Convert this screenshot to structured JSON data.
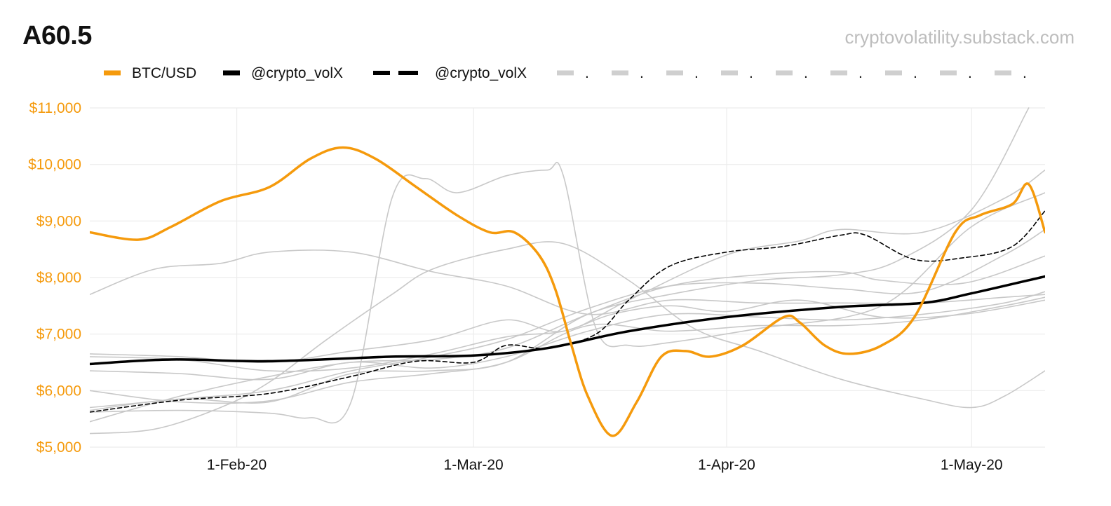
{
  "header": {
    "title": "A60.5",
    "source": "cryptovolatility.substack.com"
  },
  "colors": {
    "btc": "#f59a0c",
    "vol": "#000000",
    "grey": "#c8c8c8",
    "grid": "#ececec"
  },
  "legend": [
    {
      "label": "BTC/USD",
      "style": "btc"
    },
    {
      "label": "@crypto_volX",
      "style": "solid-black"
    },
    {
      "label": "@crypto_volX",
      "style": "dashed-black"
    },
    {
      "label": ".",
      "style": "grey"
    },
    {
      "label": ".",
      "style": "grey"
    },
    {
      "label": ".",
      "style": "grey"
    },
    {
      "label": ".",
      "style": "grey"
    },
    {
      "label": ".",
      "style": "grey"
    },
    {
      "label": ".",
      "style": "grey"
    },
    {
      "label": ".",
      "style": "grey"
    },
    {
      "label": ".",
      "style": "grey"
    },
    {
      "label": ".",
      "style": "grey"
    }
  ],
  "chart_data": {
    "type": "line",
    "title": "A60.5",
    "ylim": [
      5000,
      11000
    ],
    "yticks": [
      5000,
      6000,
      7000,
      8000,
      9000,
      10000,
      11000
    ],
    "ytick_labels": [
      "$5,000",
      "$6,000",
      "$7,000",
      "$8,000",
      "$9,000",
      "$10,000",
      "$11,000"
    ],
    "xlim": [
      "2020-01-14",
      "2020-05-10"
    ],
    "xticks": [
      "2020-02-01",
      "2020-03-01",
      "2020-04-01",
      "2020-05-01"
    ],
    "xtick_labels": [
      "1-Feb-20",
      "1-Mar-20",
      "1-Apr-20",
      "1-May-20"
    ],
    "grid": true,
    "legend_position": "top-left",
    "series": [
      {
        "name": "BTC/USD",
        "style": "btc",
        "points": [
          [
            "2020-01-14",
            8800
          ],
          [
            "2020-01-20",
            8670
          ],
          [
            "2020-01-24",
            8900
          ],
          [
            "2020-01-30",
            9350
          ],
          [
            "2020-02-05",
            9600
          ],
          [
            "2020-02-10",
            10100
          ],
          [
            "2020-02-14",
            10300
          ],
          [
            "2020-02-18",
            10100
          ],
          [
            "2020-02-23",
            9600
          ],
          [
            "2020-02-28",
            9100
          ],
          [
            "2020-03-03",
            8800
          ],
          [
            "2020-03-06",
            8800
          ],
          [
            "2020-03-09",
            8400
          ],
          [
            "2020-03-11",
            7800
          ],
          [
            "2020-03-13",
            6800
          ],
          [
            "2020-03-15",
            5900
          ],
          [
            "2020-03-18",
            5200
          ],
          [
            "2020-03-21",
            5800
          ],
          [
            "2020-03-24",
            6600
          ],
          [
            "2020-03-27",
            6700
          ],
          [
            "2020-03-30",
            6600
          ],
          [
            "2020-04-03",
            6800
          ],
          [
            "2020-04-08",
            7300
          ],
          [
            "2020-04-10",
            7200
          ],
          [
            "2020-04-13",
            6800
          ],
          [
            "2020-04-16",
            6650
          ],
          [
            "2020-04-20",
            6800
          ],
          [
            "2020-04-24",
            7300
          ],
          [
            "2020-04-29",
            8800
          ],
          [
            "2020-05-02",
            9100
          ],
          [
            "2020-05-06",
            9300
          ],
          [
            "2020-05-08",
            9650
          ],
          [
            "2020-05-10",
            8800
          ]
        ]
      },
      {
        "name": "@crypto_volX",
        "style": "solid-black",
        "points": [
          [
            "2020-01-14",
            6470
          ],
          [
            "2020-01-24",
            6550
          ],
          [
            "2020-02-05",
            6520
          ],
          [
            "2020-02-20",
            6600
          ],
          [
            "2020-03-01",
            6620
          ],
          [
            "2020-03-10",
            6750
          ],
          [
            "2020-03-20",
            7050
          ],
          [
            "2020-04-01",
            7300
          ],
          [
            "2020-04-15",
            7480
          ],
          [
            "2020-04-25",
            7550
          ],
          [
            "2020-05-01",
            7720
          ],
          [
            "2020-05-10",
            8020
          ]
        ]
      },
      {
        "name": "@crypto_volX",
        "style": "dashed-black",
        "points": [
          [
            "2020-01-14",
            5620
          ],
          [
            "2020-01-25",
            5830
          ],
          [
            "2020-02-05",
            5950
          ],
          [
            "2020-02-15",
            6250
          ],
          [
            "2020-02-23",
            6520
          ],
          [
            "2020-03-01",
            6500
          ],
          [
            "2020-03-05",
            6800
          ],
          [
            "2020-03-10",
            6750
          ],
          [
            "2020-03-16",
            7000
          ],
          [
            "2020-03-20",
            7600
          ],
          [
            "2020-03-25",
            8200
          ],
          [
            "2020-04-01",
            8450
          ],
          [
            "2020-04-08",
            8550
          ],
          [
            "2020-04-15",
            8750
          ],
          [
            "2020-04-18",
            8750
          ],
          [
            "2020-04-24",
            8320
          ],
          [
            "2020-04-30",
            8350
          ],
          [
            "2020-05-06",
            8550
          ],
          [
            "2020-05-10",
            9180
          ]
        ]
      },
      {
        "name": "",
        "style": "grey",
        "points": [
          [
            "2020-01-14",
            7700
          ],
          [
            "2020-01-22",
            8150
          ],
          [
            "2020-01-30",
            8250
          ],
          [
            "2020-02-05",
            8450
          ],
          [
            "2020-02-15",
            8450
          ],
          [
            "2020-02-25",
            8100
          ],
          [
            "2020-03-05",
            7850
          ],
          [
            "2020-03-15",
            7350
          ],
          [
            "2020-03-25",
            7600
          ],
          [
            "2020-04-05",
            7550
          ],
          [
            "2020-04-15",
            7550
          ],
          [
            "2020-04-25",
            7550
          ],
          [
            "2020-05-05",
            7650
          ],
          [
            "2020-05-10",
            7700
          ]
        ]
      },
      {
        "name": "",
        "style": "grey",
        "points": [
          [
            "2020-01-14",
            5620
          ],
          [
            "2020-01-25",
            5650
          ],
          [
            "2020-02-05",
            5600
          ],
          [
            "2020-02-10",
            5520
          ],
          [
            "2020-02-15",
            5800
          ],
          [
            "2020-02-20",
            9400
          ],
          [
            "2020-02-24",
            9750
          ],
          [
            "2020-02-28",
            9500
          ],
          [
            "2020-03-05",
            9800
          ],
          [
            "2020-03-10",
            9900
          ],
          [
            "2020-03-12",
            9800
          ],
          [
            "2020-03-16",
            7100
          ],
          [
            "2020-03-20",
            6800
          ],
          [
            "2020-03-25",
            6850
          ],
          [
            "2020-04-05",
            7100
          ],
          [
            "2020-04-20",
            7500
          ],
          [
            "2020-05-01",
            8900
          ],
          [
            "2020-05-10",
            9500
          ]
        ]
      },
      {
        "name": "",
        "style": "grey",
        "points": [
          [
            "2020-01-14",
            6600
          ],
          [
            "2020-01-25",
            6550
          ],
          [
            "2020-02-05",
            6350
          ],
          [
            "2020-02-15",
            6400
          ],
          [
            "2020-02-25",
            6650
          ],
          [
            "2020-03-05",
            6950
          ],
          [
            "2020-03-12",
            7050
          ],
          [
            "2020-03-18",
            7350
          ],
          [
            "2020-03-25",
            7500
          ],
          [
            "2020-04-01",
            7400
          ],
          [
            "2020-04-10",
            7600
          ],
          [
            "2020-04-20",
            7300
          ],
          [
            "2020-04-30",
            7350
          ],
          [
            "2020-05-10",
            7600
          ]
        ]
      },
      {
        "name": "",
        "style": "grey",
        "points": [
          [
            "2020-01-14",
            5240
          ],
          [
            "2020-01-22",
            5320
          ],
          [
            "2020-01-30",
            5700
          ],
          [
            "2020-02-05",
            6150
          ],
          [
            "2020-02-12",
            6900
          ],
          [
            "2020-02-20",
            7700
          ],
          [
            "2020-02-25",
            8150
          ],
          [
            "2020-03-05",
            8500
          ],
          [
            "2020-03-12",
            8600
          ],
          [
            "2020-03-20",
            7950
          ],
          [
            "2020-03-28",
            7100
          ],
          [
            "2020-04-05",
            6700
          ],
          [
            "2020-04-15",
            6200
          ],
          [
            "2020-04-25",
            5850
          ],
          [
            "2020-05-01",
            5700
          ],
          [
            "2020-05-05",
            5900
          ],
          [
            "2020-05-10",
            6350
          ]
        ]
      },
      {
        "name": "",
        "style": "grey",
        "points": [
          [
            "2020-01-14",
            5450
          ],
          [
            "2020-01-25",
            5900
          ],
          [
            "2020-02-05",
            6250
          ],
          [
            "2020-02-15",
            6500
          ],
          [
            "2020-02-25",
            6550
          ],
          [
            "2020-03-05",
            6750
          ],
          [
            "2020-03-15",
            7350
          ],
          [
            "2020-03-25",
            7850
          ],
          [
            "2020-04-05",
            8050
          ],
          [
            "2020-04-15",
            8100
          ],
          [
            "2020-04-20",
            7950
          ],
          [
            "2020-04-30",
            7900
          ],
          [
            "2020-05-10",
            8380
          ]
        ]
      },
      {
        "name": "",
        "style": "grey",
        "points": [
          [
            "2020-01-14",
            6350
          ],
          [
            "2020-01-25",
            6300
          ],
          [
            "2020-02-05",
            6200
          ],
          [
            "2020-02-15",
            6500
          ],
          [
            "2020-02-25",
            6400
          ],
          [
            "2020-03-05",
            6600
          ],
          [
            "2020-03-15",
            7050
          ],
          [
            "2020-03-25",
            7350
          ],
          [
            "2020-04-05",
            7300
          ],
          [
            "2020-04-15",
            7250
          ],
          [
            "2020-04-25",
            7350
          ],
          [
            "2020-05-05",
            7550
          ],
          [
            "2020-05-10",
            7750
          ]
        ]
      },
      {
        "name": "",
        "style": "grey",
        "points": [
          [
            "2020-01-14",
            6000
          ],
          [
            "2020-01-25",
            5800
          ],
          [
            "2020-02-05",
            5820
          ],
          [
            "2020-02-15",
            6150
          ],
          [
            "2020-02-25",
            6300
          ],
          [
            "2020-03-05",
            6500
          ],
          [
            "2020-03-15",
            7150
          ],
          [
            "2020-03-25",
            7050
          ],
          [
            "2020-04-05",
            7150
          ],
          [
            "2020-04-15",
            7150
          ],
          [
            "2020-04-25",
            7250
          ],
          [
            "2020-05-05",
            7500
          ],
          [
            "2020-05-10",
            7650
          ]
        ]
      },
      {
        "name": "",
        "style": "grey",
        "points": [
          [
            "2020-01-14",
            5700
          ],
          [
            "2020-01-25",
            5850
          ],
          [
            "2020-02-05",
            6000
          ],
          [
            "2020-02-15",
            6350
          ],
          [
            "2020-02-25",
            6600
          ],
          [
            "2020-03-05",
            6900
          ],
          [
            "2020-03-15",
            7450
          ],
          [
            "2020-03-25",
            7850
          ],
          [
            "2020-04-05",
            7900
          ],
          [
            "2020-04-15",
            7800
          ],
          [
            "2020-04-25",
            7750
          ],
          [
            "2020-05-05",
            8400
          ],
          [
            "2020-05-10",
            8850
          ]
        ]
      },
      {
        "name": "",
        "style": "grey",
        "points": [
          [
            "2020-01-14",
            6650
          ],
          [
            "2020-01-25",
            6600
          ],
          [
            "2020-02-05",
            6500
          ],
          [
            "2020-02-15",
            6700
          ],
          [
            "2020-02-25",
            6900
          ],
          [
            "2020-03-05",
            7250
          ],
          [
            "2020-03-12",
            7050
          ],
          [
            "2020-03-20",
            7600
          ],
          [
            "2020-04-01",
            8400
          ],
          [
            "2020-04-10",
            8650
          ],
          [
            "2020-04-15",
            8850
          ],
          [
            "2020-04-25",
            8800
          ],
          [
            "2020-05-05",
            9400
          ],
          [
            "2020-05-10",
            9900
          ]
        ]
      },
      {
        "name": "",
        "style": "grey",
        "points": [
          [
            "2020-01-14",
            5650
          ],
          [
            "2020-01-25",
            5850
          ],
          [
            "2020-02-05",
            5800
          ],
          [
            "2020-02-15",
            6300
          ],
          [
            "2020-02-25",
            6350
          ],
          [
            "2020-03-05",
            6500
          ],
          [
            "2020-03-15",
            7350
          ],
          [
            "2020-03-25",
            7700
          ],
          [
            "2020-04-05",
            7950
          ],
          [
            "2020-04-15",
            8050
          ],
          [
            "2020-04-22",
            8300
          ],
          [
            "2020-05-01",
            9200
          ],
          [
            "2020-05-08",
            11000
          ]
        ]
      }
    ]
  }
}
